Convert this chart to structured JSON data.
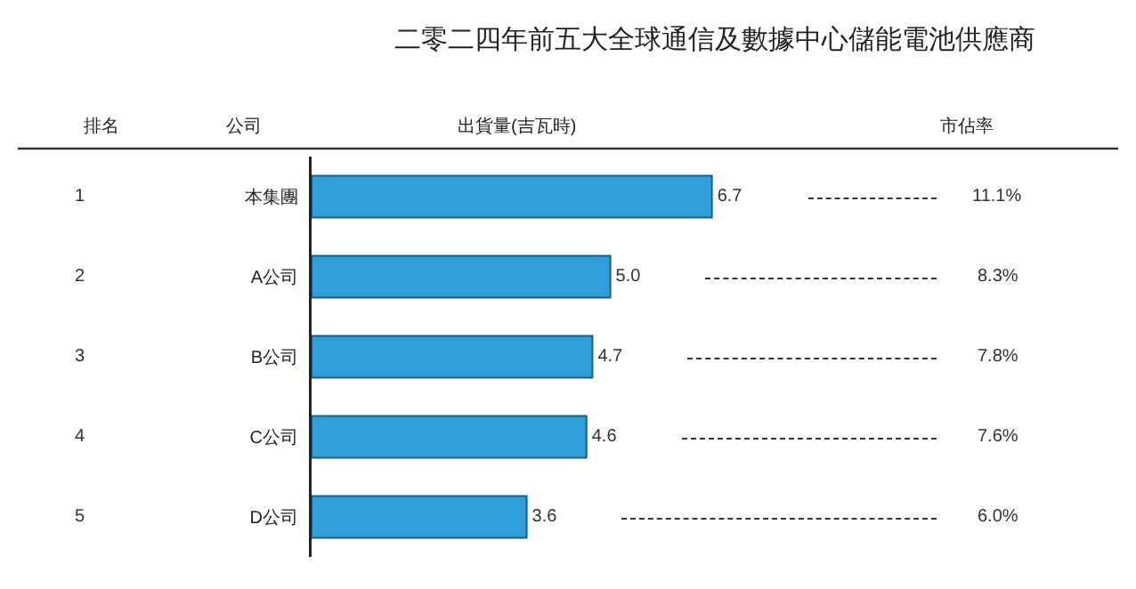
{
  "chart_data": {
    "type": "bar",
    "orientation": "horizontal",
    "title": "二零二四年前五大全球通信及數據中心儲能電池供應商",
    "xlabel": "出貨量(吉瓦時)",
    "ylabel": "公司",
    "categories": [
      "本集團",
      "A公司",
      "B公司",
      "C公司",
      "D公司"
    ],
    "values": [
      6.7,
      5.0,
      4.7,
      4.6,
      3.6
    ],
    "color": "#2e9fd9",
    "value_labels": [
      "6.7",
      "5.0",
      "4.7",
      "4.6",
      "3.6"
    ],
    "xlim": [
      0,
      13.5
    ],
    "tick_labels": "y",
    "grid": false,
    "legend": false,
    "annotations": [
      "排名",
      "市佔率",
      "1",
      "2",
      "3",
      "4",
      "5",
      "11.1%",
      "8.3%",
      "7.8%",
      "7.6%",
      "6.0%"
    ]
  }
}
